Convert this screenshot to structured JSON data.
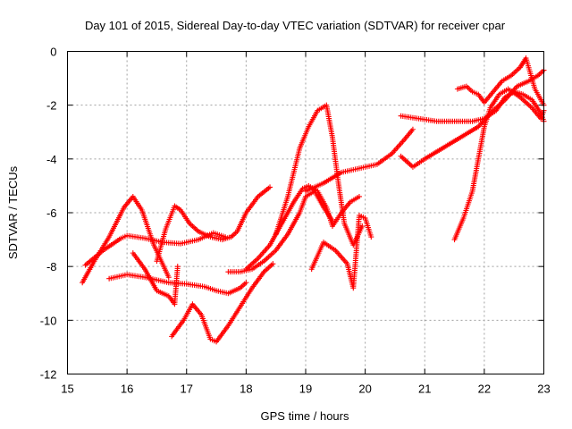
{
  "chart_data": {
    "type": "scatter",
    "title": "Day 101 of 2015, Sidereal Day-to-day VTEC variation (SDTVAR) for receiver cpar",
    "xlabel": "GPS time / hours",
    "ylabel": "SDTVAR / TECUs",
    "xlim": [
      15,
      23
    ],
    "ylim": [
      -12,
      0
    ],
    "xticks": [
      15,
      16,
      17,
      18,
      19,
      20,
      21,
      22,
      23
    ],
    "yticks": [
      0,
      -2,
      -4,
      -6,
      -8,
      -10,
      -12
    ],
    "grid": true,
    "marker": "+",
    "color": "#ff0000",
    "series": [
      {
        "x": [
          15.25,
          15.45,
          15.7,
          15.95,
          16.1,
          16.25,
          16.45,
          16.7
        ],
        "y": [
          -8.6,
          -7.8,
          -6.9,
          -5.8,
          -5.4,
          -5.9,
          -7.2,
          -8.4
        ]
      },
      {
        "x": [
          15.3,
          15.6,
          15.9,
          16.0,
          16.3,
          16.6,
          16.9,
          17.2,
          17.45,
          17.65
        ],
        "y": [
          -7.95,
          -7.4,
          -6.95,
          -6.85,
          -6.95,
          -7.1,
          -7.15,
          -7.0,
          -6.75,
          -6.9
        ]
      },
      {
        "x": [
          15.7,
          16.0,
          16.3,
          16.7,
          17.0,
          17.3,
          17.5,
          17.7,
          17.9,
          18.0
        ],
        "y": [
          -8.45,
          -8.3,
          -8.4,
          -8.6,
          -8.65,
          -8.75,
          -8.9,
          -9.0,
          -8.8,
          -8.6
        ]
      },
      {
        "x": [
          16.1,
          16.3,
          16.5,
          16.7,
          16.8,
          16.85
        ],
        "y": [
          -7.5,
          -8.1,
          -8.9,
          -9.1,
          -9.4,
          -8.0
        ]
      },
      {
        "x": [
          16.5,
          16.65,
          16.8,
          16.9,
          17.05,
          17.2,
          17.4,
          17.6,
          17.75,
          17.85,
          18.0,
          18.2,
          18.4
        ],
        "y": [
          -7.8,
          -6.6,
          -5.75,
          -5.9,
          -6.4,
          -6.7,
          -6.9,
          -7.0,
          -6.9,
          -6.7,
          -6.0,
          -5.4,
          -5.05
        ]
      },
      {
        "x": [
          16.75,
          16.95,
          17.1,
          17.25,
          17.4,
          17.5,
          17.7,
          17.9,
          18.1,
          18.3,
          18.45
        ],
        "y": [
          -10.6,
          -10.0,
          -9.4,
          -9.8,
          -10.7,
          -10.8,
          -10.2,
          -9.5,
          -8.8,
          -8.2,
          -7.9
        ]
      },
      {
        "x": [
          17.7,
          17.9,
          18.1,
          18.3,
          18.5,
          18.7,
          18.9,
          19.0,
          19.15,
          19.3,
          19.45
        ],
        "y": [
          -8.2,
          -8.2,
          -8.1,
          -7.8,
          -7.4,
          -6.8,
          -6.0,
          -5.4,
          -5.2,
          -5.8,
          -6.3
        ]
      },
      {
        "x": [
          18.0,
          18.2,
          18.4,
          18.6,
          18.8,
          18.95,
          19.05,
          19.2,
          19.35,
          19.45,
          19.6,
          19.75,
          19.9
        ],
        "y": [
          -8.1,
          -7.7,
          -7.2,
          -6.4,
          -5.6,
          -5.1,
          -5.0,
          -5.2,
          -5.8,
          -6.5,
          -6.0,
          -5.6,
          -5.4
        ]
      },
      {
        "x": [
          18.5,
          18.7,
          18.9,
          19.05,
          19.2,
          19.35,
          19.45,
          19.55,
          19.65,
          19.8,
          19.95
        ],
        "y": [
          -6.8,
          -5.4,
          -3.6,
          -2.8,
          -2.2,
          -2.0,
          -3.2,
          -4.9,
          -6.4,
          -7.2,
          -6.5
        ]
      },
      {
        "x": [
          19.1,
          19.3,
          19.5,
          19.7,
          19.8,
          19.9,
          20.0,
          20.1
        ],
        "y": [
          -8.1,
          -7.1,
          -7.4,
          -7.9,
          -8.8,
          -6.1,
          -6.2,
          -6.9
        ]
      },
      {
        "x": [
          19.0,
          19.3,
          19.6,
          19.9,
          20.2,
          20.45,
          20.65,
          20.8
        ],
        "y": [
          -5.2,
          -4.9,
          -4.5,
          -4.35,
          -4.2,
          -3.8,
          -3.3,
          -2.9
        ]
      },
      {
        "x": [
          20.6,
          20.9,
          21.2,
          21.5,
          21.8,
          22.0,
          22.2,
          22.35,
          22.5,
          22.65,
          22.8,
          22.95,
          23.0
        ],
        "y": [
          -2.4,
          -2.5,
          -2.6,
          -2.6,
          -2.6,
          -2.5,
          -2.2,
          -1.7,
          -1.5,
          -1.6,
          -1.8,
          -2.3,
          -2.6
        ]
      },
      {
        "x": [
          20.6,
          20.8,
          21.0,
          21.3,
          21.6,
          21.9,
          22.15,
          22.35,
          22.55,
          22.75,
          22.9,
          23.0
        ],
        "y": [
          -3.9,
          -4.3,
          -4.0,
          -3.6,
          -3.2,
          -2.8,
          -2.2,
          -1.8,
          -1.3,
          -1.1,
          -0.9,
          -0.7
        ]
      },
      {
        "x": [
          21.55,
          21.7,
          21.8,
          21.9,
          22.0,
          22.15,
          22.3,
          22.45,
          22.6,
          22.7,
          22.85,
          23.0
        ],
        "y": [
          -1.4,
          -1.3,
          -1.5,
          -1.6,
          -1.9,
          -1.5,
          -1.1,
          -0.9,
          -0.6,
          -0.25,
          -1.4,
          -2.0
        ]
      },
      {
        "x": [
          21.5,
          21.65,
          21.8,
          21.9,
          22.0,
          22.1,
          22.25,
          22.4,
          22.6,
          22.8,
          22.95,
          23.0
        ],
        "y": [
          -7.0,
          -6.2,
          -5.2,
          -4.0,
          -2.8,
          -2.1,
          -1.6,
          -1.4,
          -1.7,
          -2.1,
          -2.5,
          -2.2
        ]
      }
    ]
  }
}
